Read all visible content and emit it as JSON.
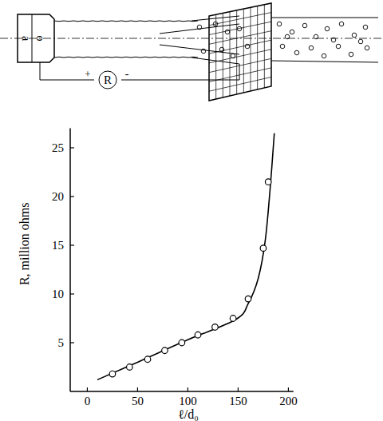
{
  "chart_data": {
    "type": "line",
    "x_label": "ℓ/d₀",
    "y_label": "R, million ohms",
    "xlim": [
      -17,
      205
    ],
    "xticks": [
      0,
      50,
      100,
      150,
      200
    ],
    "ylim": [
      0,
      27
    ],
    "yticks": [
      5,
      10,
      15,
      20,
      25
    ],
    "grid": false,
    "series": [
      {
        "type": "line",
        "color": "#000000",
        "line_style": "solid",
        "x": [
          10,
          50,
          100,
          148,
          160,
          170,
          177,
          182,
          186
        ],
        "values": [
          1.2,
          3.0,
          5.3,
          7.4,
          9.0,
          11.6,
          15.5,
          21.0,
          26.5
        ]
      },
      {
        "type": "scatter",
        "color": "#000000",
        "marker": "circle",
        "x": [
          25,
          42,
          60,
          77,
          94,
          110,
          127,
          145,
          160,
          175,
          180
        ],
        "values": [
          1.8,
          2.5,
          3.3,
          4.2,
          5.0,
          5.8,
          6.6,
          7.5,
          9.5,
          14.7,
          21.5
        ]
      }
    ]
  },
  "diagram": {
    "nozzle_labels": [
      "a",
      "o"
    ],
    "meter": {
      "plus": "+",
      "label": "R",
      "minus": "-"
    }
  }
}
